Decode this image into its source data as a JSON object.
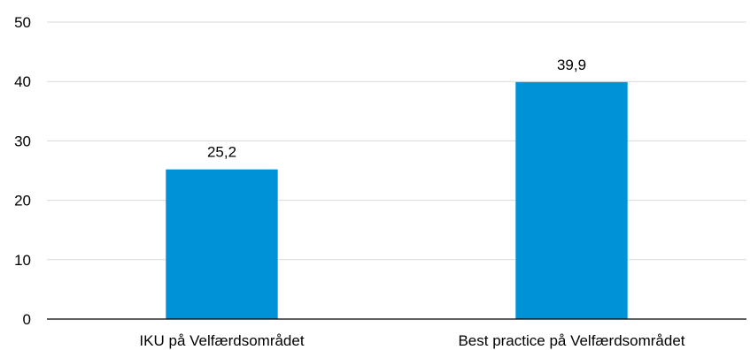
{
  "chart_data": {
    "type": "bar",
    "categories": [
      "IKU på Velfærdsområdet",
      "Best practice på Velfærdsområdet"
    ],
    "values": [
      25.2,
      39.9
    ],
    "value_labels": [
      "25,2",
      "39,9"
    ],
    "ylim": [
      0,
      50
    ],
    "y_ticks": [
      0,
      10,
      20,
      30,
      40,
      50
    ],
    "y_tick_labels": [
      "0",
      "10",
      "20",
      "30",
      "40",
      "50"
    ],
    "title": "",
    "xlabel": "",
    "ylabel": "",
    "grid": true,
    "legend": "none",
    "bar_color": "#0092d6"
  }
}
